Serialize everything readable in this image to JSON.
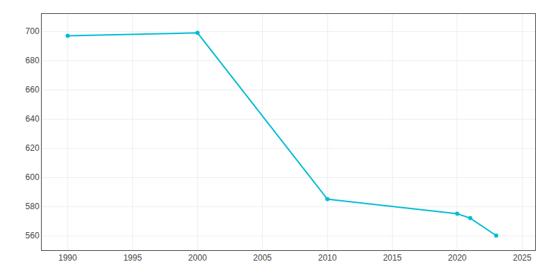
{
  "chart_data": {
    "type": "line",
    "x": [
      1990,
      2000,
      2010,
      2020,
      2021,
      2023
    ],
    "values": [
      697,
      699,
      585,
      575,
      572,
      560
    ],
    "color": "#00bcd4",
    "marker": "circle",
    "xlim": [
      1988,
      2026
    ],
    "ylim": [
      550,
      712
    ],
    "xticks": [
      1990,
      1995,
      2000,
      2005,
      2010,
      2015,
      2020,
      2025
    ],
    "yticks": [
      560,
      580,
      600,
      620,
      640,
      660,
      680,
      700
    ],
    "grid": true
  }
}
